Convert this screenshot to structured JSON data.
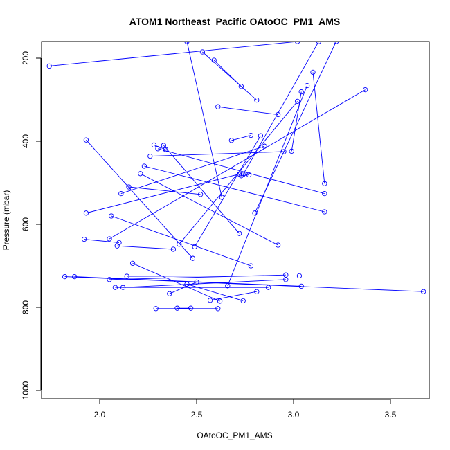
{
  "chart_data": {
    "type": "line",
    "title": "ATOM1 Northeast_Pacific OAtoOC_PM1_AMS",
    "xlabel": "OAtoOC_PM1_AMS",
    "ylabel": "Pressure (mbar)",
    "xlim": [
      1.7,
      3.7
    ],
    "ylim": [
      1020,
      160
    ],
    "y_reversed": true,
    "x_ticks": [
      "2.0",
      "2.5",
      "3.0",
      "3.5"
    ],
    "y_ticks": [
      "200",
      "400",
      "600",
      "800",
      "1000"
    ],
    "x_tick_values": [
      2.0,
      2.5,
      3.0,
      3.5
    ],
    "y_tick_values": [
      200,
      400,
      600,
      800,
      1000
    ],
    "grid": false,
    "series": [
      {
        "color": "#0000ff",
        "marker": "open-circle",
        "segments": [
          [
            [
              1.74,
              219
            ],
            [
              3.02,
              160
            ]
          ],
          [
            [
              2.45,
              160
            ],
            [
              2.63,
              535
            ]
          ],
          [
            [
              2.53,
              185
            ],
            [
              2.81,
              301
            ]
          ],
          [
            [
              2.59,
              205
            ],
            [
              2.73,
              268
            ]
          ],
          [
            [
              1.93,
              397
            ],
            [
              2.48,
              682
            ]
          ],
          [
            [
              2.61,
              317
            ],
            [
              2.92,
              336
            ]
          ],
          [
            [
              3.37,
              276
            ],
            [
              2.05,
              635
            ]
          ],
          [
            [
              2.8,
              573
            ],
            [
              3.22,
              160
            ]
          ],
          [
            [
              2.73,
              483
            ],
            [
              2.77,
              481
            ]
          ],
          [
            [
              2.74,
              480
            ],
            [
              3.13,
              160
            ]
          ],
          [
            [
              3.04,
              281
            ],
            [
              2.99,
              424
            ]
          ],
          [
            [
              3.07,
              266
            ],
            [
              2.66,
              748
            ]
          ],
          [
            [
              3.1,
              234
            ],
            [
              3.16,
              502
            ]
          ],
          [
            [
              3.02,
              304
            ],
            [
              2.41,
              648
            ]
          ],
          [
            [
              2.85,
              412
            ],
            [
              2.11,
              526
            ]
          ],
          [
            [
              2.95,
              425
            ],
            [
              2.26,
              436
            ]
          ],
          [
            [
              2.68,
              398
            ],
            [
              2.78,
              386
            ]
          ],
          [
            [
              2.83,
              387
            ],
            [
              2.49,
              654
            ]
          ],
          [
            [
              2.72,
              479
            ],
            [
              1.93,
              573
            ]
          ],
          [
            [
              2.3,
              418
            ],
            [
              3.16,
              526
            ]
          ],
          [
            [
              2.33,
              410
            ],
            [
              2.72,
              622
            ]
          ],
          [
            [
              2.28,
              409
            ],
            [
              2.34,
              420
            ]
          ],
          [
            [
              2.23,
              460
            ],
            [
              3.16,
              570
            ]
          ],
          [
            [
              2.21,
              478
            ],
            [
              2.92,
              650
            ]
          ],
          [
            [
              2.15,
              510
            ],
            [
              2.52,
              528
            ]
          ],
          [
            [
              2.06,
              580
            ],
            [
              2.78,
              700
            ]
          ],
          [
            [
              1.92,
              636
            ],
            [
              2.1,
              644
            ]
          ],
          [
            [
              2.09,
              652
            ],
            [
              2.38,
              660
            ]
          ],
          [
            [
              2.17,
              694
            ],
            [
              2.62,
              785
            ]
          ],
          [
            [
              2.14,
              725
            ],
            [
              3.03,
              724
            ]
          ],
          [
            [
              1.82,
              726
            ],
            [
              3.67,
              762
            ]
          ],
          [
            [
              1.87,
              726
            ],
            [
              3.04,
              749
            ]
          ],
          [
            [
              2.05,
              733
            ],
            [
              2.96,
              722
            ]
          ],
          [
            [
              2.08,
              752
            ],
            [
              2.87,
              752
            ]
          ],
          [
            [
              2.12,
              752
            ],
            [
              2.96,
              733
            ]
          ],
          [
            [
              2.29,
              803
            ],
            [
              2.61,
              803
            ]
          ],
          [
            [
              2.36,
              767
            ],
            [
              2.5,
              739
            ]
          ],
          [
            [
              2.4,
              802
            ],
            [
              2.47,
              802
            ]
          ],
          [
            [
              2.57,
              783
            ],
            [
              2.81,
              762
            ]
          ],
          [
            [
              2.45,
              744
            ],
            [
              2.74,
              784
            ]
          ]
        ]
      }
    ]
  }
}
